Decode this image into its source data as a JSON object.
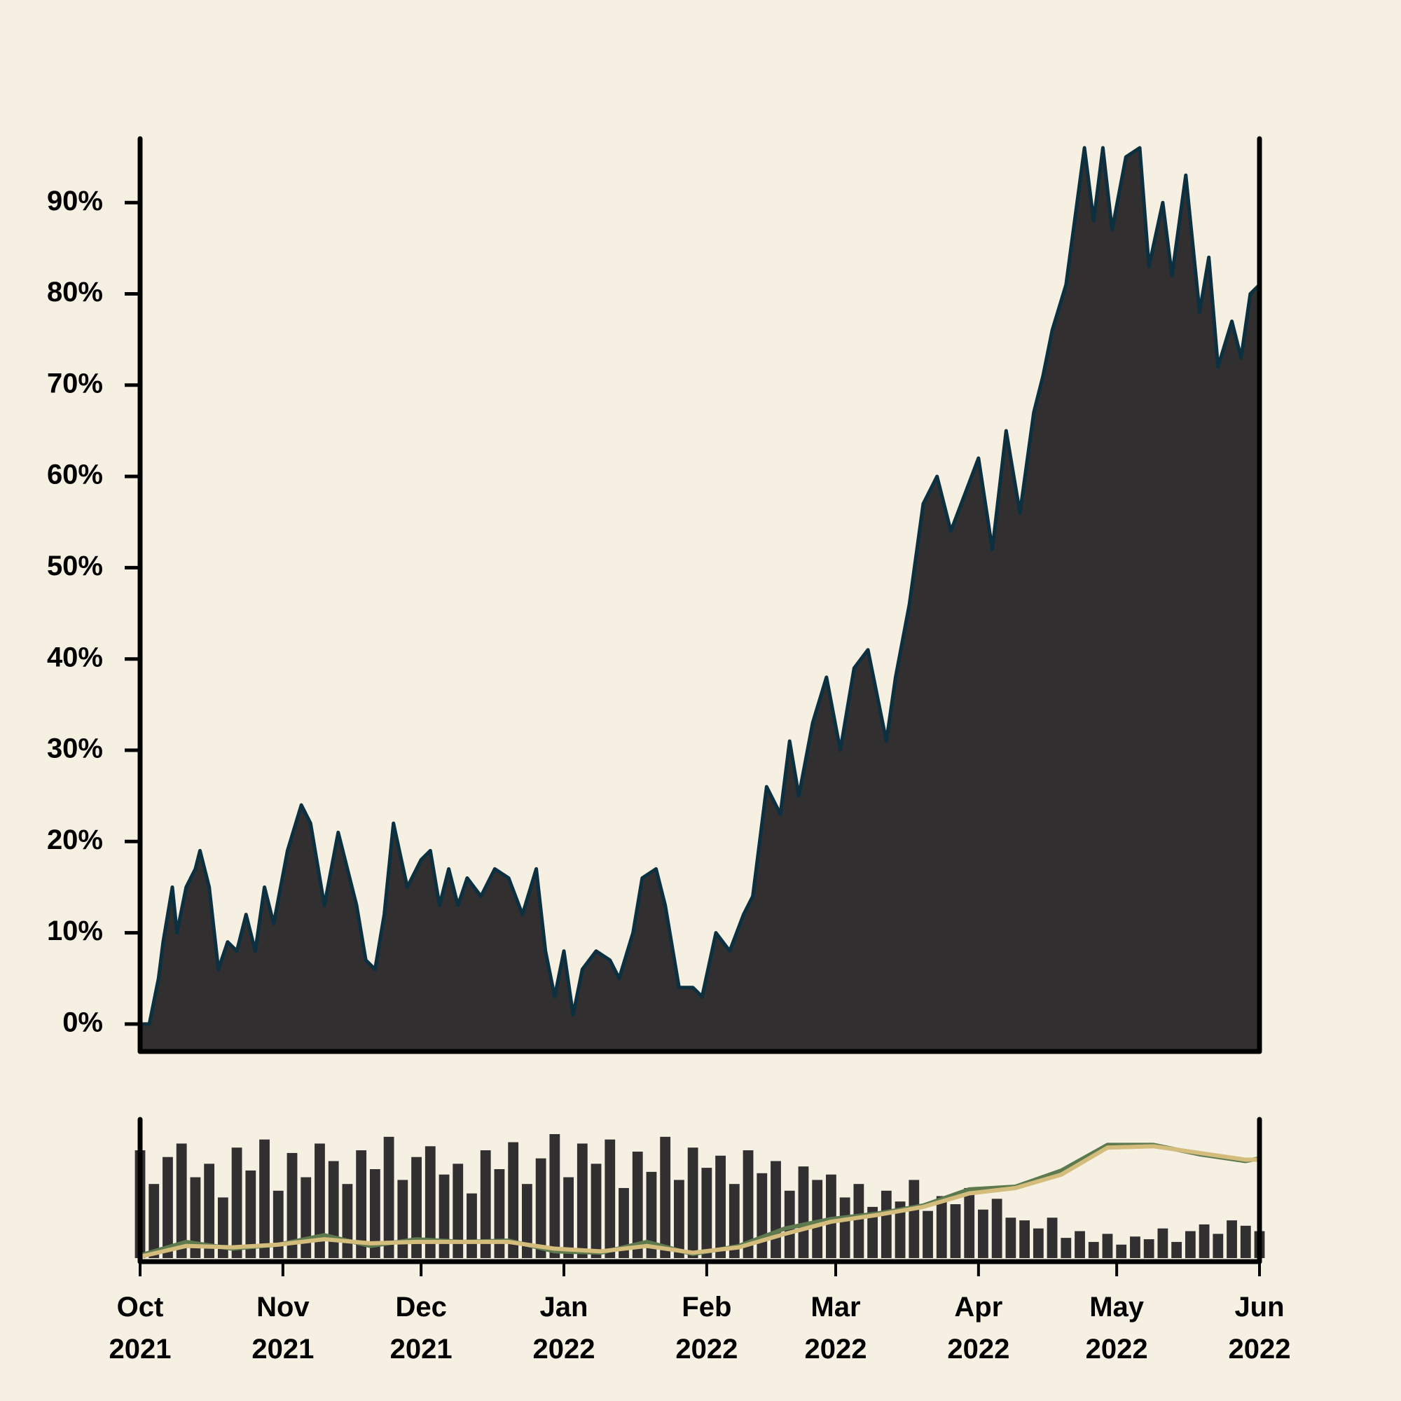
{
  "chart_data": [
    {
      "type": "area",
      "color": "#312f30",
      "line_color": "#0c3040",
      "xlim": [
        0,
        243
      ],
      "ylim": [
        -3,
        97
      ],
      "yticks": [
        {
          "value": 0,
          "label": "0%"
        },
        {
          "value": 10,
          "label": "10%"
        },
        {
          "value": 20,
          "label": "20%"
        },
        {
          "value": 30,
          "label": "30%"
        },
        {
          "value": 40,
          "label": "40%"
        },
        {
          "value": 50,
          "label": "50%"
        },
        {
          "value": 60,
          "label": "60%"
        },
        {
          "value": 70,
          "label": "70%"
        },
        {
          "value": 80,
          "label": "80%"
        },
        {
          "value": 90,
          "label": "90%"
        }
      ],
      "x": [
        0,
        2,
        4,
        5,
        7,
        8,
        10,
        12,
        13,
        15,
        17,
        19,
        21,
        23,
        25,
        27,
        29,
        32,
        35,
        37,
        40,
        43,
        45,
        47,
        49,
        51,
        53,
        55,
        58,
        61,
        63,
        65,
        67,
        69,
        71,
        74,
        77,
        80,
        83,
        86,
        88,
        90,
        92,
        94,
        96,
        99,
        102,
        104,
        107,
        109,
        112,
        114,
        117,
        120,
        122,
        125,
        128,
        131,
        133,
        136,
        139,
        141,
        143,
        146,
        149,
        152,
        155,
        158,
        162,
        164,
        167,
        170,
        173,
        176,
        179,
        182,
        185,
        188,
        191,
        194,
        196,
        198,
        201,
        205,
        207,
        209,
        211,
        214,
        217,
        219,
        222,
        224,
        227,
        230,
        232,
        234,
        237,
        239,
        241,
        243
      ],
      "values": [
        0,
        0,
        5,
        9,
        15,
        10,
        15,
        17,
        19,
        15,
        6,
        9,
        8,
        12,
        8,
        15,
        11,
        19,
        24,
        22,
        13,
        21,
        17,
        13,
        7,
        6,
        12,
        22,
        15,
        18,
        19,
        13,
        17,
        13,
        16,
        14,
        17,
        16,
        12,
        17,
        8,
        3,
        8,
        1,
        6,
        8,
        7,
        5,
        10,
        16,
        17,
        13,
        4,
        4,
        3,
        10,
        8,
        12,
        14,
        26,
        23,
        31,
        25,
        33,
        38,
        30,
        39,
        41,
        31,
        38,
        46,
        57,
        60,
        54,
        58,
        62,
        52,
        65,
        56,
        67,
        71,
        76,
        81,
        96,
        88,
        96,
        87,
        95,
        96,
        83,
        90,
        82,
        93,
        78,
        84,
        72,
        77,
        73,
        80,
        81
      ]
    },
    {
      "type": "combo",
      "color": "#312f30",
      "xlim": [
        0,
        243
      ],
      "ylim": [
        0,
        105
      ],
      "xticks": [
        {
          "value": 0,
          "label": "Oct\n2021"
        },
        {
          "value": 31,
          "label": "Nov\n2021"
        },
        {
          "value": 61,
          "label": "Dec\n2021"
        },
        {
          "value": 92,
          "label": "Jan\n2022"
        },
        {
          "value": 123,
          "label": "Feb\n2022"
        },
        {
          "value": 151,
          "label": "Mar\n2022"
        },
        {
          "value": 182,
          "label": "Apr\n2022"
        },
        {
          "value": 212,
          "label": "May\n2022"
        },
        {
          "value": 243,
          "label": "Jun\n2022"
        }
      ],
      "x": [
        0,
        3,
        6,
        9,
        12,
        15,
        18,
        21,
        24,
        27,
        30,
        33,
        36,
        39,
        42,
        45,
        48,
        51,
        54,
        57,
        60,
        63,
        66,
        69,
        72,
        75,
        78,
        81,
        84,
        87,
        90,
        93,
        96,
        99,
        102,
        105,
        108,
        111,
        114,
        117,
        120,
        123,
        126,
        129,
        132,
        135,
        138,
        141,
        144,
        147,
        150,
        153,
        156,
        159,
        162,
        165,
        168,
        171,
        174,
        177,
        180,
        183,
        186,
        189,
        192,
        195,
        198,
        201,
        204,
        207,
        210,
        213,
        216,
        219,
        222,
        225,
        228,
        231,
        234,
        237,
        240,
        243
      ],
      "values": [
        80,
        55,
        75,
        85,
        60,
        70,
        45,
        82,
        65,
        88,
        50,
        78,
        60,
        85,
        72,
        55,
        80,
        66,
        90,
        58,
        75,
        83,
        62,
        70,
        48,
        80,
        66,
        86,
        55,
        74,
        92,
        60,
        85,
        70,
        88,
        52,
        79,
        64,
        90,
        58,
        82,
        67,
        76,
        55,
        80,
        63,
        72,
        50,
        68,
        58,
        62,
        45,
        55,
        38,
        50,
        42,
        58,
        35,
        46,
        40,
        52,
        36,
        44,
        30,
        28,
        22,
        30,
        15,
        20,
        12,
        18,
        10,
        16,
        14,
        22,
        12,
        20,
        25,
        18,
        28,
        24,
        20
      ],
      "series": [
        {
          "color": "#5c7a4e",
          "x": [
            0,
            10,
            20,
            30,
            40,
            50,
            60,
            70,
            80,
            90,
            100,
            110,
            120,
            130,
            140,
            150,
            160,
            170,
            180,
            190,
            200,
            210,
            220,
            230,
            240,
            243
          ],
          "values": [
            2,
            12,
            7,
            10,
            17,
            9,
            14,
            12,
            13,
            5,
            4,
            12,
            3,
            9,
            22,
            29,
            33,
            39,
            51,
            53,
            65,
            84,
            84,
            77,
            72,
            74
          ]
        },
        {
          "color": "#d4bc7c",
          "x": [
            0,
            10,
            20,
            30,
            40,
            50,
            60,
            70,
            80,
            90,
            100,
            110,
            120,
            130,
            140,
            150,
            160,
            170,
            180,
            190,
            200,
            210,
            220,
            230,
            240,
            243
          ],
          "values": [
            1,
            9,
            8,
            10,
            14,
            11,
            12,
            12,
            12,
            7,
            5,
            9,
            4,
            8,
            18,
            27,
            32,
            38,
            48,
            52,
            62,
            82,
            83,
            78,
            73,
            73
          ]
        }
      ]
    }
  ]
}
